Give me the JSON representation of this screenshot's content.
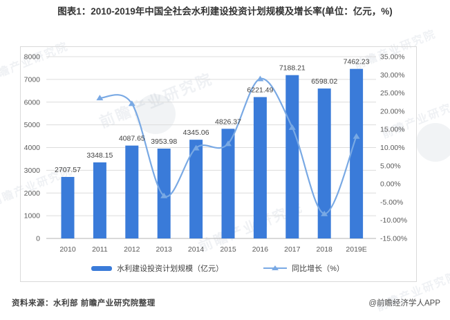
{
  "title": "图表1：2010-2019年中国全社会水利建设投资计划规模及增长率(单位：亿元，%)",
  "chart_data": {
    "type": "bar",
    "categories": [
      "2010",
      "2011",
      "2012",
      "2013",
      "2014",
      "2015",
      "2016",
      "2017",
      "2018",
      "2019E"
    ],
    "series": [
      {
        "name": "水利建设投资计划规模（亿元）",
        "kind": "bar",
        "axis": "left",
        "color": "#3a7bd9",
        "values": [
          2707.57,
          3348.15,
          4087.65,
          3953.98,
          4345.06,
          4826.37,
          6221.49,
          7188.21,
          6598.02,
          7462.23
        ],
        "value_labels": [
          "2707.57",
          "3348.15",
          "4087.65",
          "3953.98",
          "4345.06",
          "4826.37",
          "6221.49",
          "7188.21",
          "6598.02",
          "7462.23"
        ]
      },
      {
        "name": "同比增长（%）",
        "kind": "line",
        "axis": "right",
        "color": "#79a9e4",
        "values": [
          null,
          23.66,
          22.09,
          -3.27,
          9.89,
          11.08,
          28.91,
          15.54,
          -8.21,
          13.1
        ]
      }
    ],
    "left_axis": {
      "min": 0,
      "max": 8000,
      "step": 1000,
      "ticks": [
        8000,
        7000,
        6000,
        5000,
        4000,
        3000,
        2000,
        1000,
        0
      ]
    },
    "right_axis": {
      "min": -15,
      "max": 35,
      "step": 5,
      "ticks": [
        "35.00%",
        "30.00%",
        "25.00%",
        "20.00%",
        "15.00%",
        "10.00%",
        "5.00%",
        "0.00%",
        "-5.00%",
        "-10.00%",
        "-15.00%"
      ]
    },
    "grid": true,
    "legend_position": "bottom"
  },
  "source": {
    "left": "资料来源：水利部 前瞻产业研究院整理",
    "right": "@前瞻经济学人APP"
  },
  "watermark": {
    "brand": "前瞻产业研究院",
    "logo": "swoosh-circle"
  },
  "colors": {
    "bar": "#3a7bd9",
    "line": "#79a9e4",
    "grid": "#dcdcdc",
    "axis_line": "#b3b3b3",
    "tick_text": "#595959",
    "label_text": "#404040"
  }
}
